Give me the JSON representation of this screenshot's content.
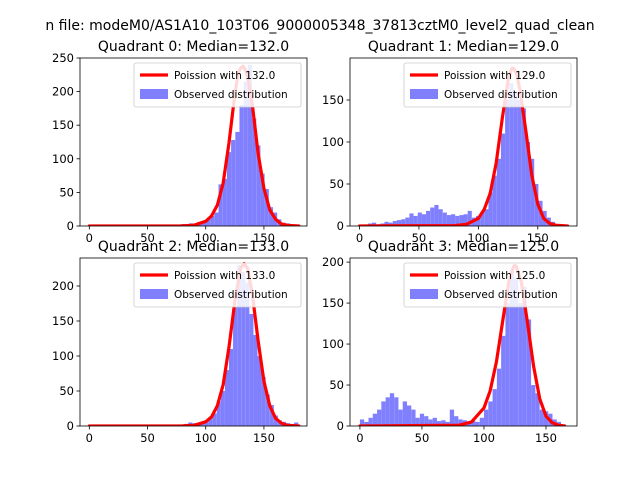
{
  "suptitle": "n file: modeM0/AS1A10_103T06_9000005348_37813cztM0_level2_quad_clean",
  "colors": {
    "model": "#ff0000",
    "histogram": "#8080ff"
  },
  "chart_data": [
    {
      "type": "bar",
      "title": "Quadrant 0: Median=132.0",
      "median": 132.0,
      "xlim": [
        -8,
        187
      ],
      "ylim": [
        0,
        250
      ],
      "xticks": [
        0,
        50,
        100,
        150
      ],
      "yticks": [
        0,
        50,
        100,
        150,
        200,
        250
      ],
      "legend": {
        "placement": "upper right",
        "entries": [
          "Poission with 132.0",
          "Observed distribution"
        ]
      },
      "series": [
        {
          "name": "Observed distribution",
          "kind": "histogram",
          "bin_width": 3.6,
          "bins": [
            [
              75,
              2
            ],
            [
              78.6,
              3
            ],
            [
              82.2,
              2
            ],
            [
              85.8,
              4
            ],
            [
              89.4,
              1
            ],
            [
              93,
              6
            ],
            [
              96.6,
              5
            ],
            [
              100.2,
              10
            ],
            [
              103.8,
              15
            ],
            [
              107.4,
              20
            ],
            [
              111,
              62
            ],
            [
              114.6,
              70
            ],
            [
              118.2,
              110
            ],
            [
              121.8,
              128
            ],
            [
              125.4,
              140
            ],
            [
              129,
              180
            ],
            [
              132.6,
              215
            ],
            [
              136.2,
              240
            ],
            [
              139.8,
              160
            ],
            [
              143.4,
              120
            ],
            [
              147,
              78
            ],
            [
              150.6,
              55
            ],
            [
              154.2,
              28
            ],
            [
              157.8,
              20
            ],
            [
              161.4,
              10
            ],
            [
              165,
              5
            ],
            [
              168.6,
              4
            ],
            [
              172.2,
              2
            ]
          ]
        },
        {
          "name": "Poission with 132.0",
          "kind": "line",
          "x": [
            0,
            80,
            90,
            100,
            105,
            110,
            115,
            120,
            125,
            128,
            130,
            132,
            134,
            136,
            140,
            145,
            150,
            155,
            160,
            165,
            170,
            180
          ],
          "y": [
            0,
            0.3,
            1.2,
            7,
            15,
            31,
            64,
            124,
            196,
            228,
            235,
            238,
            232,
            222,
            181,
            108,
            56,
            24,
            10,
            3,
            1,
            0
          ]
        }
      ]
    },
    {
      "type": "bar",
      "title": "Quadrant 1: Median=129.0",
      "median": 129.0,
      "xlim": [
        -8,
        183
      ],
      "ylim": [
        0,
        200
      ],
      "xticks": [
        0,
        50,
        100,
        150
      ],
      "yticks": [
        0,
        50,
        100,
        150
      ],
      "legend": {
        "placement": "upper right",
        "entries": [
          "Poission with 129.0",
          "Observed distribution"
        ]
      },
      "series": [
        {
          "name": "Observed distribution",
          "kind": "histogram",
          "bin_width": 3.5,
          "bins": [
            [
              7,
              3
            ],
            [
              10.5,
              4
            ],
            [
              14,
              2
            ],
            [
              17.5,
              3
            ],
            [
              21,
              5
            ],
            [
              24.5,
              4
            ],
            [
              28,
              6
            ],
            [
              31.5,
              7
            ],
            [
              35,
              8
            ],
            [
              38.5,
              10
            ],
            [
              42,
              15
            ],
            [
              45.5,
              12
            ],
            [
              49,
              16
            ],
            [
              52.5,
              14
            ],
            [
              56,
              18
            ],
            [
              59.5,
              22
            ],
            [
              63,
              25
            ],
            [
              66.5,
              20
            ],
            [
              70,
              16
            ],
            [
              73.5,
              13
            ],
            [
              77,
              14
            ],
            [
              80.5,
              12
            ],
            [
              84,
              13
            ],
            [
              87.5,
              14
            ],
            [
              91,
              18
            ],
            [
              94.5,
              10
            ],
            [
              98,
              12
            ],
            [
              101.5,
              16
            ],
            [
              105,
              20
            ],
            [
              108.5,
              40
            ],
            [
              112,
              60
            ],
            [
              115.5,
              80
            ],
            [
              119,
              110
            ],
            [
              122.5,
              150
            ],
            [
              126,
              170
            ],
            [
              129.5,
              160
            ],
            [
              133,
              150
            ],
            [
              136.5,
              140
            ],
            [
              140,
              100
            ],
            [
              143.5,
              80
            ],
            [
              147,
              50
            ],
            [
              150.5,
              30
            ],
            [
              154,
              18
            ],
            [
              157.5,
              10
            ],
            [
              161,
              5
            ],
            [
              164.5,
              2
            ]
          ]
        },
        {
          "name": "Poission with 129.0",
          "kind": "line",
          "x": [
            0,
            80,
            90,
            100,
            105,
            110,
            115,
            120,
            125,
            128,
            129,
            130,
            132,
            135,
            140,
            145,
            150,
            155,
            160,
            165,
            175
          ],
          "y": [
            0,
            0.5,
            2,
            9,
            20,
            39,
            75,
            127,
            173,
            187,
            188,
            187,
            182,
            162,
            113,
            60,
            26,
            9,
            3,
            1,
            0
          ]
        }
      ]
    },
    {
      "type": "bar",
      "title": "Quadrant 2: Median=133.0",
      "median": 133.0,
      "xlim": [
        -8,
        187
      ],
      "ylim": [
        0,
        240
      ],
      "xticks": [
        0,
        50,
        100,
        150
      ],
      "yticks": [
        0,
        50,
        100,
        150,
        200
      ],
      "legend": {
        "placement": "upper right",
        "entries": [
          "Poission with 133.0",
          "Observed distribution"
        ]
      },
      "series": [
        {
          "name": "Observed distribution",
          "kind": "histogram",
          "bin_width": 3.5,
          "bins": [
            [
              78,
              2
            ],
            [
              81.5,
              3
            ],
            [
              85,
              5
            ],
            [
              88.5,
              4
            ],
            [
              92,
              2
            ],
            [
              95.5,
              6
            ],
            [
              99,
              8
            ],
            [
              102.5,
              12
            ],
            [
              106,
              18
            ],
            [
              109.5,
              35
            ],
            [
              113,
              50
            ],
            [
              116.5,
              80
            ],
            [
              120,
              110
            ],
            [
              123.5,
              170
            ],
            [
              127,
              230
            ],
            [
              130.5,
              220
            ],
            [
              134,
              205
            ],
            [
              137.5,
              160
            ],
            [
              141,
              130
            ],
            [
              144.5,
              100
            ],
            [
              148,
              70
            ],
            [
              151.5,
              45
            ],
            [
              155,
              30
            ],
            [
              158.5,
              15
            ],
            [
              162,
              8
            ],
            [
              165.5,
              6
            ],
            [
              169,
              4
            ],
            [
              172.5,
              3
            ],
            [
              176,
              5
            ]
          ]
        },
        {
          "name": "Poission with 133.0",
          "kind": "line",
          "x": [
            0,
            80,
            90,
            100,
            105,
            110,
            115,
            120,
            125,
            130,
            133,
            136,
            140,
            145,
            150,
            155,
            160,
            165,
            170,
            180
          ],
          "y": [
            0,
            0.2,
            1,
            6,
            13,
            29,
            59,
            113,
            178,
            226,
            232,
            225,
            189,
            122,
            64,
            29,
            11,
            4,
            1,
            0
          ]
        }
      ]
    },
    {
      "type": "bar",
      "title": "Quadrant 3: Median=125.0",
      "median": 125.0,
      "xlim": [
        -8,
        175
      ],
      "ylim": [
        0,
        205
      ],
      "xticks": [
        0,
        50,
        100,
        150
      ],
      "yticks": [
        0,
        50,
        100,
        150,
        200
      ],
      "legend": {
        "placement": "upper right",
        "entries": [
          "Poission with 125.0",
          "Observed distribution"
        ]
      },
      "series": [
        {
          "name": "Observed distribution",
          "kind": "histogram",
          "bin_width": 3.45,
          "bins": [
            [
              0,
              8
            ],
            [
              3.45,
              5
            ],
            [
              6.9,
              10
            ],
            [
              10.35,
              15
            ],
            [
              13.8,
              20
            ],
            [
              17.25,
              30
            ],
            [
              20.7,
              35
            ],
            [
              24.15,
              40
            ],
            [
              27.6,
              35
            ],
            [
              31.05,
              20
            ],
            [
              34.5,
              30
            ],
            [
              37.95,
              25
            ],
            [
              41.4,
              20
            ],
            [
              44.85,
              10
            ],
            [
              48.3,
              15
            ],
            [
              51.75,
              12
            ],
            [
              55.2,
              8
            ],
            [
              58.65,
              10
            ],
            [
              62.1,
              6
            ],
            [
              65.55,
              7
            ],
            [
              69,
              5
            ],
            [
              72.45,
              20
            ],
            [
              75.9,
              12
            ],
            [
              79.35,
              8
            ],
            [
              82.8,
              7
            ],
            [
              86.25,
              5
            ],
            [
              89.7,
              6
            ],
            [
              93.15,
              5
            ],
            [
              96.6,
              10
            ],
            [
              100.05,
              20
            ],
            [
              103.5,
              30
            ],
            [
              106.95,
              45
            ],
            [
              110.4,
              70
            ],
            [
              113.85,
              110
            ],
            [
              117.3,
              150
            ],
            [
              120.75,
              190
            ],
            [
              124.2,
              180
            ],
            [
              127.65,
              150
            ],
            [
              131.1,
              170
            ],
            [
              134.55,
              130
            ],
            [
              138,
              50
            ],
            [
              141.45,
              40
            ],
            [
              144.9,
              20
            ],
            [
              148.35,
              18
            ],
            [
              151.8,
              15
            ],
            [
              155.25,
              8
            ],
            [
              158.7,
              5
            ],
            [
              162.15,
              2
            ]
          ]
        },
        {
          "name": "Poission with 125.0",
          "kind": "line",
          "x": [
            0,
            80,
            90,
            100,
            105,
            110,
            115,
            120,
            124,
            125,
            126,
            130,
            135,
            140,
            145,
            150,
            155,
            160,
            165
          ],
          "y": [
            0,
            1,
            5,
            22,
            43,
            78,
            127,
            176,
            195,
            196,
            195,
            177,
            127,
            73,
            33,
            12,
            4,
            1,
            0
          ]
        }
      ]
    }
  ]
}
